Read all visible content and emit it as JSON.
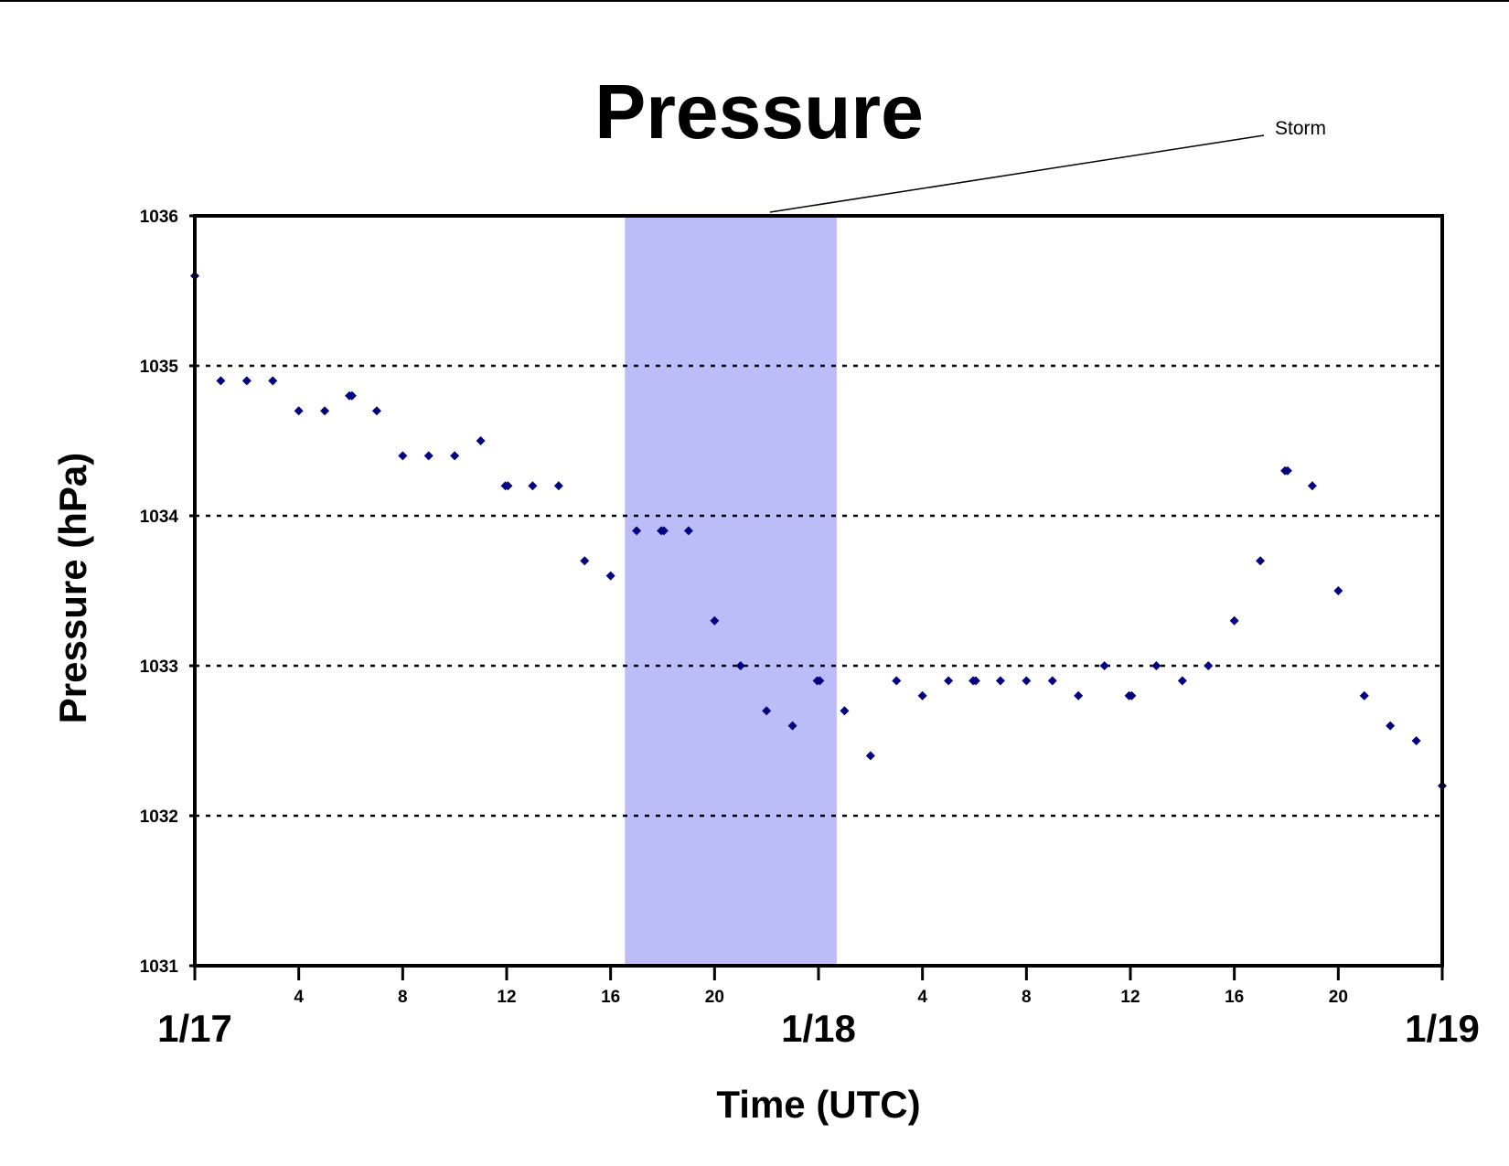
{
  "colors": {
    "point": "#000080",
    "storm_band": "#bcbcf8",
    "grid": "#000000",
    "axes": "#000000"
  },
  "chart_data": {
    "type": "scatter",
    "title": "Pressure",
    "xlabel": "Time (UTC)",
    "ylabel": "Pressure (hPa)",
    "ylim": [
      1031,
      1036
    ],
    "yticks": [
      "1031",
      "1032",
      "1033",
      "1034",
      "1035",
      "1036"
    ],
    "xlim_hours_from_1_17_00utc": [
      0,
      48
    ],
    "xticks": [
      {
        "hour": 4,
        "label": "4"
      },
      {
        "hour": 8,
        "label": "8"
      },
      {
        "hour": 12,
        "label": "12"
      },
      {
        "hour": 16,
        "label": "16"
      },
      {
        "hour": 20,
        "label": "20"
      },
      {
        "hour": 28,
        "label": "4"
      },
      {
        "hour": 32,
        "label": "8"
      },
      {
        "hour": 36,
        "label": "12"
      },
      {
        "hour": 40,
        "label": "16"
      },
      {
        "hour": 44,
        "label": "20"
      }
    ],
    "date_labels": [
      {
        "hour": 0,
        "label": "1/17"
      },
      {
        "hour": 24,
        "label": "1/18"
      },
      {
        "hour": 48,
        "label": "1/19"
      }
    ],
    "grid": "horizontal dotted",
    "annotation": {
      "text": "Storm",
      "x_start": 16.55,
      "x_end": 24.7
    },
    "series": [
      {
        "points": [
          [
            0,
            1035.6
          ],
          [
            1,
            1034.9
          ],
          [
            2,
            1034.9
          ],
          [
            3,
            1034.9
          ],
          [
            4,
            1034.7
          ],
          [
            5,
            1034.7
          ],
          [
            5.95,
            1034.8
          ],
          [
            6.05,
            1034.8
          ],
          [
            7,
            1034.7
          ],
          [
            8,
            1034.4
          ],
          [
            9,
            1034.4
          ],
          [
            10,
            1034.4
          ],
          [
            11,
            1034.5
          ],
          [
            11.95,
            1034.2
          ],
          [
            12.05,
            1034.2
          ],
          [
            13,
            1034.2
          ],
          [
            14,
            1034.2
          ],
          [
            15,
            1033.7
          ],
          [
            16,
            1033.6
          ],
          [
            17,
            1033.9
          ],
          [
            17.95,
            1033.9
          ],
          [
            18.05,
            1033.9
          ],
          [
            19,
            1033.9
          ],
          [
            20,
            1033.3
          ],
          [
            21,
            1033.0
          ],
          [
            22,
            1032.7
          ],
          [
            23,
            1032.6
          ],
          [
            23.95,
            1032.9
          ],
          [
            24.05,
            1032.9
          ],
          [
            25,
            1032.7
          ],
          [
            26,
            1032.4
          ],
          [
            27,
            1032.9
          ],
          [
            28,
            1032.8
          ],
          [
            29,
            1032.9
          ],
          [
            29.95,
            1032.9
          ],
          [
            30.05,
            1032.9
          ],
          [
            31,
            1032.9
          ],
          [
            32,
            1032.9
          ],
          [
            33,
            1032.9
          ],
          [
            34,
            1032.8
          ],
          [
            35,
            1033.0
          ],
          [
            35.95,
            1032.8
          ],
          [
            36.05,
            1032.8
          ],
          [
            37,
            1033.0
          ],
          [
            38,
            1032.9
          ],
          [
            39,
            1033.0
          ],
          [
            40,
            1033.3
          ],
          [
            41,
            1033.7
          ],
          [
            41.95,
            1034.3
          ],
          [
            42.05,
            1034.3
          ],
          [
            43,
            1034.2
          ],
          [
            44,
            1033.5
          ],
          [
            45,
            1032.8
          ],
          [
            46,
            1032.6
          ],
          [
            47,
            1032.5
          ],
          [
            48,
            1032.2
          ]
        ]
      }
    ]
  }
}
